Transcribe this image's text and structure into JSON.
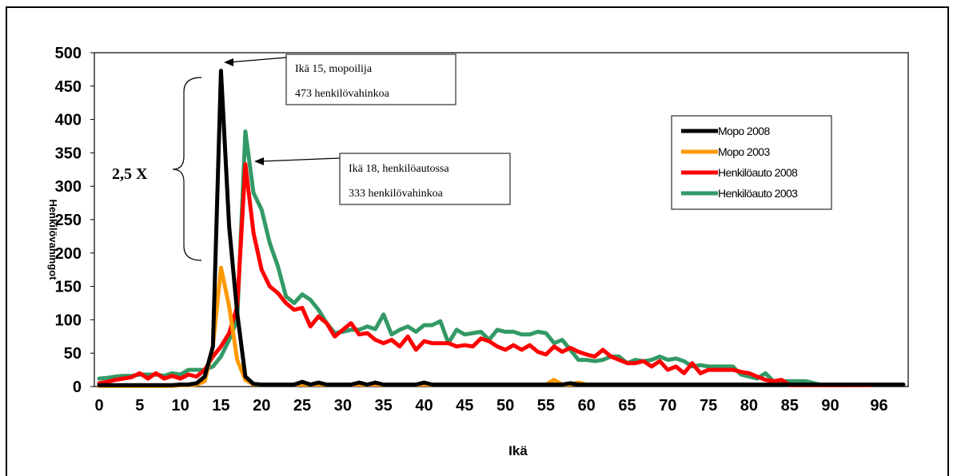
{
  "chart_data": {
    "type": "line",
    "title": "",
    "xlabel": "Ikä",
    "ylabel": "Henkilövahingot",
    "xlim": [
      0,
      99
    ],
    "ylim": [
      0,
      500
    ],
    "x_tick_labels": [
      "0",
      "5",
      "10",
      "15",
      "20",
      "25",
      "30",
      "35",
      "40",
      "45",
      "50",
      "55",
      "60",
      "65",
      "70",
      "75",
      "80",
      "85",
      "90",
      "96"
    ],
    "y_tick_labels": [
      "0",
      "50",
      "100",
      "150",
      "200",
      "250",
      "300",
      "350",
      "400",
      "450",
      "500"
    ],
    "grid": false,
    "legend_position": "right",
    "series": [
      {
        "name": "Mopo 2008",
        "color": "#000000",
        "x": [
          0,
          1,
          2,
          3,
          4,
          5,
          6,
          7,
          8,
          9,
          10,
          11,
          12,
          13,
          14,
          15,
          16,
          17,
          18,
          19,
          20,
          21,
          22,
          23,
          24,
          25,
          26,
          27,
          28,
          29,
          30,
          31,
          32,
          33,
          34,
          35,
          36,
          37,
          38,
          39,
          40,
          41,
          42,
          43,
          44,
          45,
          46,
          47,
          48,
          49,
          50,
          51,
          52,
          53,
          54,
          55,
          56,
          57,
          58,
          59,
          60,
          61,
          62,
          63,
          64,
          65,
          66,
          67,
          68,
          69,
          70,
          71,
          72,
          73,
          74,
          75,
          76,
          77,
          78,
          79,
          80,
          81,
          82,
          83,
          84,
          85,
          86,
          87,
          88,
          89,
          90,
          91,
          92,
          93,
          94,
          95,
          96,
          97,
          98,
          99
        ],
        "values": [
          2,
          2,
          2,
          2,
          2,
          2,
          2,
          2,
          2,
          2,
          3,
          3,
          5,
          15,
          60,
          473,
          240,
          110,
          15,
          4,
          3,
          3,
          3,
          3,
          3,
          7,
          3,
          6,
          3,
          3,
          3,
          3,
          6,
          3,
          6,
          3,
          3,
          3,
          3,
          3,
          6,
          3,
          3,
          3,
          3,
          3,
          3,
          3,
          3,
          3,
          3,
          3,
          3,
          3,
          3,
          3,
          3,
          3,
          5,
          3,
          3,
          3,
          3,
          3,
          3,
          3,
          3,
          3,
          3,
          3,
          3,
          3,
          3,
          3,
          3,
          3,
          3,
          3,
          3,
          3,
          3,
          3,
          3,
          3,
          3,
          3,
          3,
          3,
          3,
          3,
          3,
          3,
          3,
          3,
          3,
          3,
          3,
          3,
          3,
          3
        ]
      },
      {
        "name": "Mopo 2003",
        "color": "#ff9900",
        "x": [
          0,
          1,
          2,
          3,
          4,
          5,
          6,
          7,
          8,
          9,
          10,
          11,
          12,
          13,
          14,
          15,
          16,
          17,
          18,
          19,
          20,
          21,
          22,
          23,
          24,
          25,
          26,
          27,
          28,
          29,
          30,
          31,
          32,
          33,
          34,
          35,
          36,
          37,
          38,
          39,
          40,
          41,
          42,
          43,
          44,
          45,
          46,
          47,
          48,
          49,
          50,
          51,
          52,
          53,
          54,
          55,
          56,
          57,
          58,
          59,
          60,
          61,
          62,
          63,
          64,
          65,
          66,
          67,
          68,
          69,
          70,
          71,
          72,
          73,
          74,
          75,
          76,
          77,
          78,
          79,
          80,
          81,
          82,
          83,
          84,
          85,
          86,
          87,
          88,
          89,
          90,
          91,
          92,
          93,
          94,
          95,
          96
        ],
        "values": [
          1,
          1,
          1,
          1,
          1,
          1,
          1,
          1,
          1,
          1,
          2,
          2,
          3,
          8,
          60,
          178,
          120,
          40,
          10,
          3,
          3,
          3,
          3,
          3,
          3,
          3,
          3,
          3,
          3,
          3,
          3,
          3,
          3,
          3,
          3,
          3,
          3,
          3,
          3,
          3,
          3,
          3,
          3,
          3,
          3,
          3,
          3,
          3,
          3,
          3,
          3,
          3,
          3,
          3,
          3,
          3,
          10,
          3,
          3,
          6,
          3,
          3,
          3,
          3,
          3,
          3,
          3,
          3,
          3,
          3,
          3,
          3,
          3,
          3,
          3,
          3,
          3,
          3,
          3,
          3,
          3,
          3,
          3,
          3,
          3,
          3,
          3,
          3,
          3,
          3,
          3,
          3,
          3,
          3,
          3,
          3,
          3
        ]
      },
      {
        "name": "Henkilöauto 2008",
        "color": "#ff0000",
        "x": [
          0,
          1,
          2,
          3,
          4,
          5,
          6,
          7,
          8,
          9,
          10,
          11,
          12,
          13,
          14,
          15,
          16,
          17,
          18,
          19,
          20,
          21,
          22,
          23,
          24,
          25,
          26,
          27,
          28,
          29,
          30,
          31,
          32,
          33,
          34,
          35,
          36,
          37,
          38,
          39,
          40,
          41,
          42,
          43,
          44,
          45,
          46,
          47,
          48,
          49,
          50,
          51,
          52,
          53,
          54,
          55,
          56,
          57,
          58,
          59,
          60,
          61,
          62,
          63,
          64,
          65,
          66,
          67,
          68,
          69,
          70,
          71,
          72,
          73,
          74,
          75,
          76,
          77,
          78,
          79,
          80,
          81,
          82,
          83,
          84,
          85,
          86,
          87,
          88,
          89,
          90,
          91,
          92,
          93,
          94,
          95
        ],
        "values": [
          5,
          7,
          10,
          12,
          14,
          20,
          12,
          20,
          12,
          16,
          12,
          18,
          15,
          25,
          45,
          60,
          80,
          120,
          333,
          230,
          175,
          150,
          140,
          125,
          115,
          118,
          90,
          105,
          95,
          75,
          85,
          95,
          78,
          80,
          70,
          65,
          70,
          60,
          75,
          55,
          68,
          65,
          65,
          65,
          60,
          62,
          60,
          72,
          68,
          60,
          55,
          62,
          55,
          62,
          52,
          48,
          60,
          52,
          58,
          52,
          48,
          45,
          55,
          45,
          40,
          35,
          35,
          38,
          30,
          38,
          25,
          30,
          20,
          35,
          20,
          25,
          25,
          25,
          25,
          22,
          20,
          15,
          10,
          8,
          10,
          2,
          2,
          2,
          2,
          2,
          2,
          2,
          2,
          2,
          2,
          2
        ]
      },
      {
        "name": "Henkilöauto 2003",
        "color": "#339966",
        "x": [
          0,
          1,
          2,
          3,
          4,
          5,
          6,
          7,
          8,
          9,
          10,
          11,
          12,
          13,
          14,
          15,
          16,
          17,
          18,
          19,
          20,
          21,
          22,
          23,
          24,
          25,
          26,
          27,
          28,
          29,
          30,
          31,
          32,
          33,
          34,
          35,
          36,
          37,
          38,
          39,
          40,
          41,
          42,
          43,
          44,
          45,
          46,
          47,
          48,
          49,
          50,
          51,
          52,
          53,
          54,
          55,
          56,
          57,
          58,
          59,
          60,
          61,
          62,
          63,
          64,
          65,
          66,
          67,
          68,
          69,
          70,
          71,
          72,
          73,
          74,
          75,
          76,
          77,
          78,
          79,
          80,
          81,
          82,
          83,
          84,
          85,
          86,
          87,
          88,
          89,
          90,
          91,
          92,
          93
        ],
        "values": [
          12,
          13,
          15,
          16,
          16,
          18,
          18,
          18,
          16,
          20,
          18,
          25,
          25,
          25,
          30,
          45,
          70,
          100,
          382,
          290,
          265,
          215,
          180,
          135,
          125,
          138,
          130,
          115,
          95,
          80,
          82,
          85,
          85,
          90,
          86,
          108,
          78,
          85,
          90,
          82,
          92,
          92,
          98,
          65,
          85,
          78,
          80,
          82,
          70,
          85,
          82,
          82,
          78,
          78,
          82,
          80,
          65,
          70,
          55,
          40,
          40,
          38,
          40,
          45,
          45,
          35,
          40,
          38,
          40,
          45,
          40,
          42,
          38,
          30,
          32,
          30,
          30,
          30,
          30,
          18,
          15,
          12,
          20,
          8,
          8,
          8,
          8,
          8,
          5,
          2,
          2,
          2,
          2,
          2
        ]
      }
    ],
    "annotations": [
      {
        "lines": [
          "Ikä 15, mopoilija",
          "473 henkilövahinkoa"
        ]
      },
      {
        "lines": [
          "Ikä 18, henkilöautossa",
          "333 henkilövahinkoa"
        ]
      }
    ],
    "bracket_label": "2,5 X"
  }
}
